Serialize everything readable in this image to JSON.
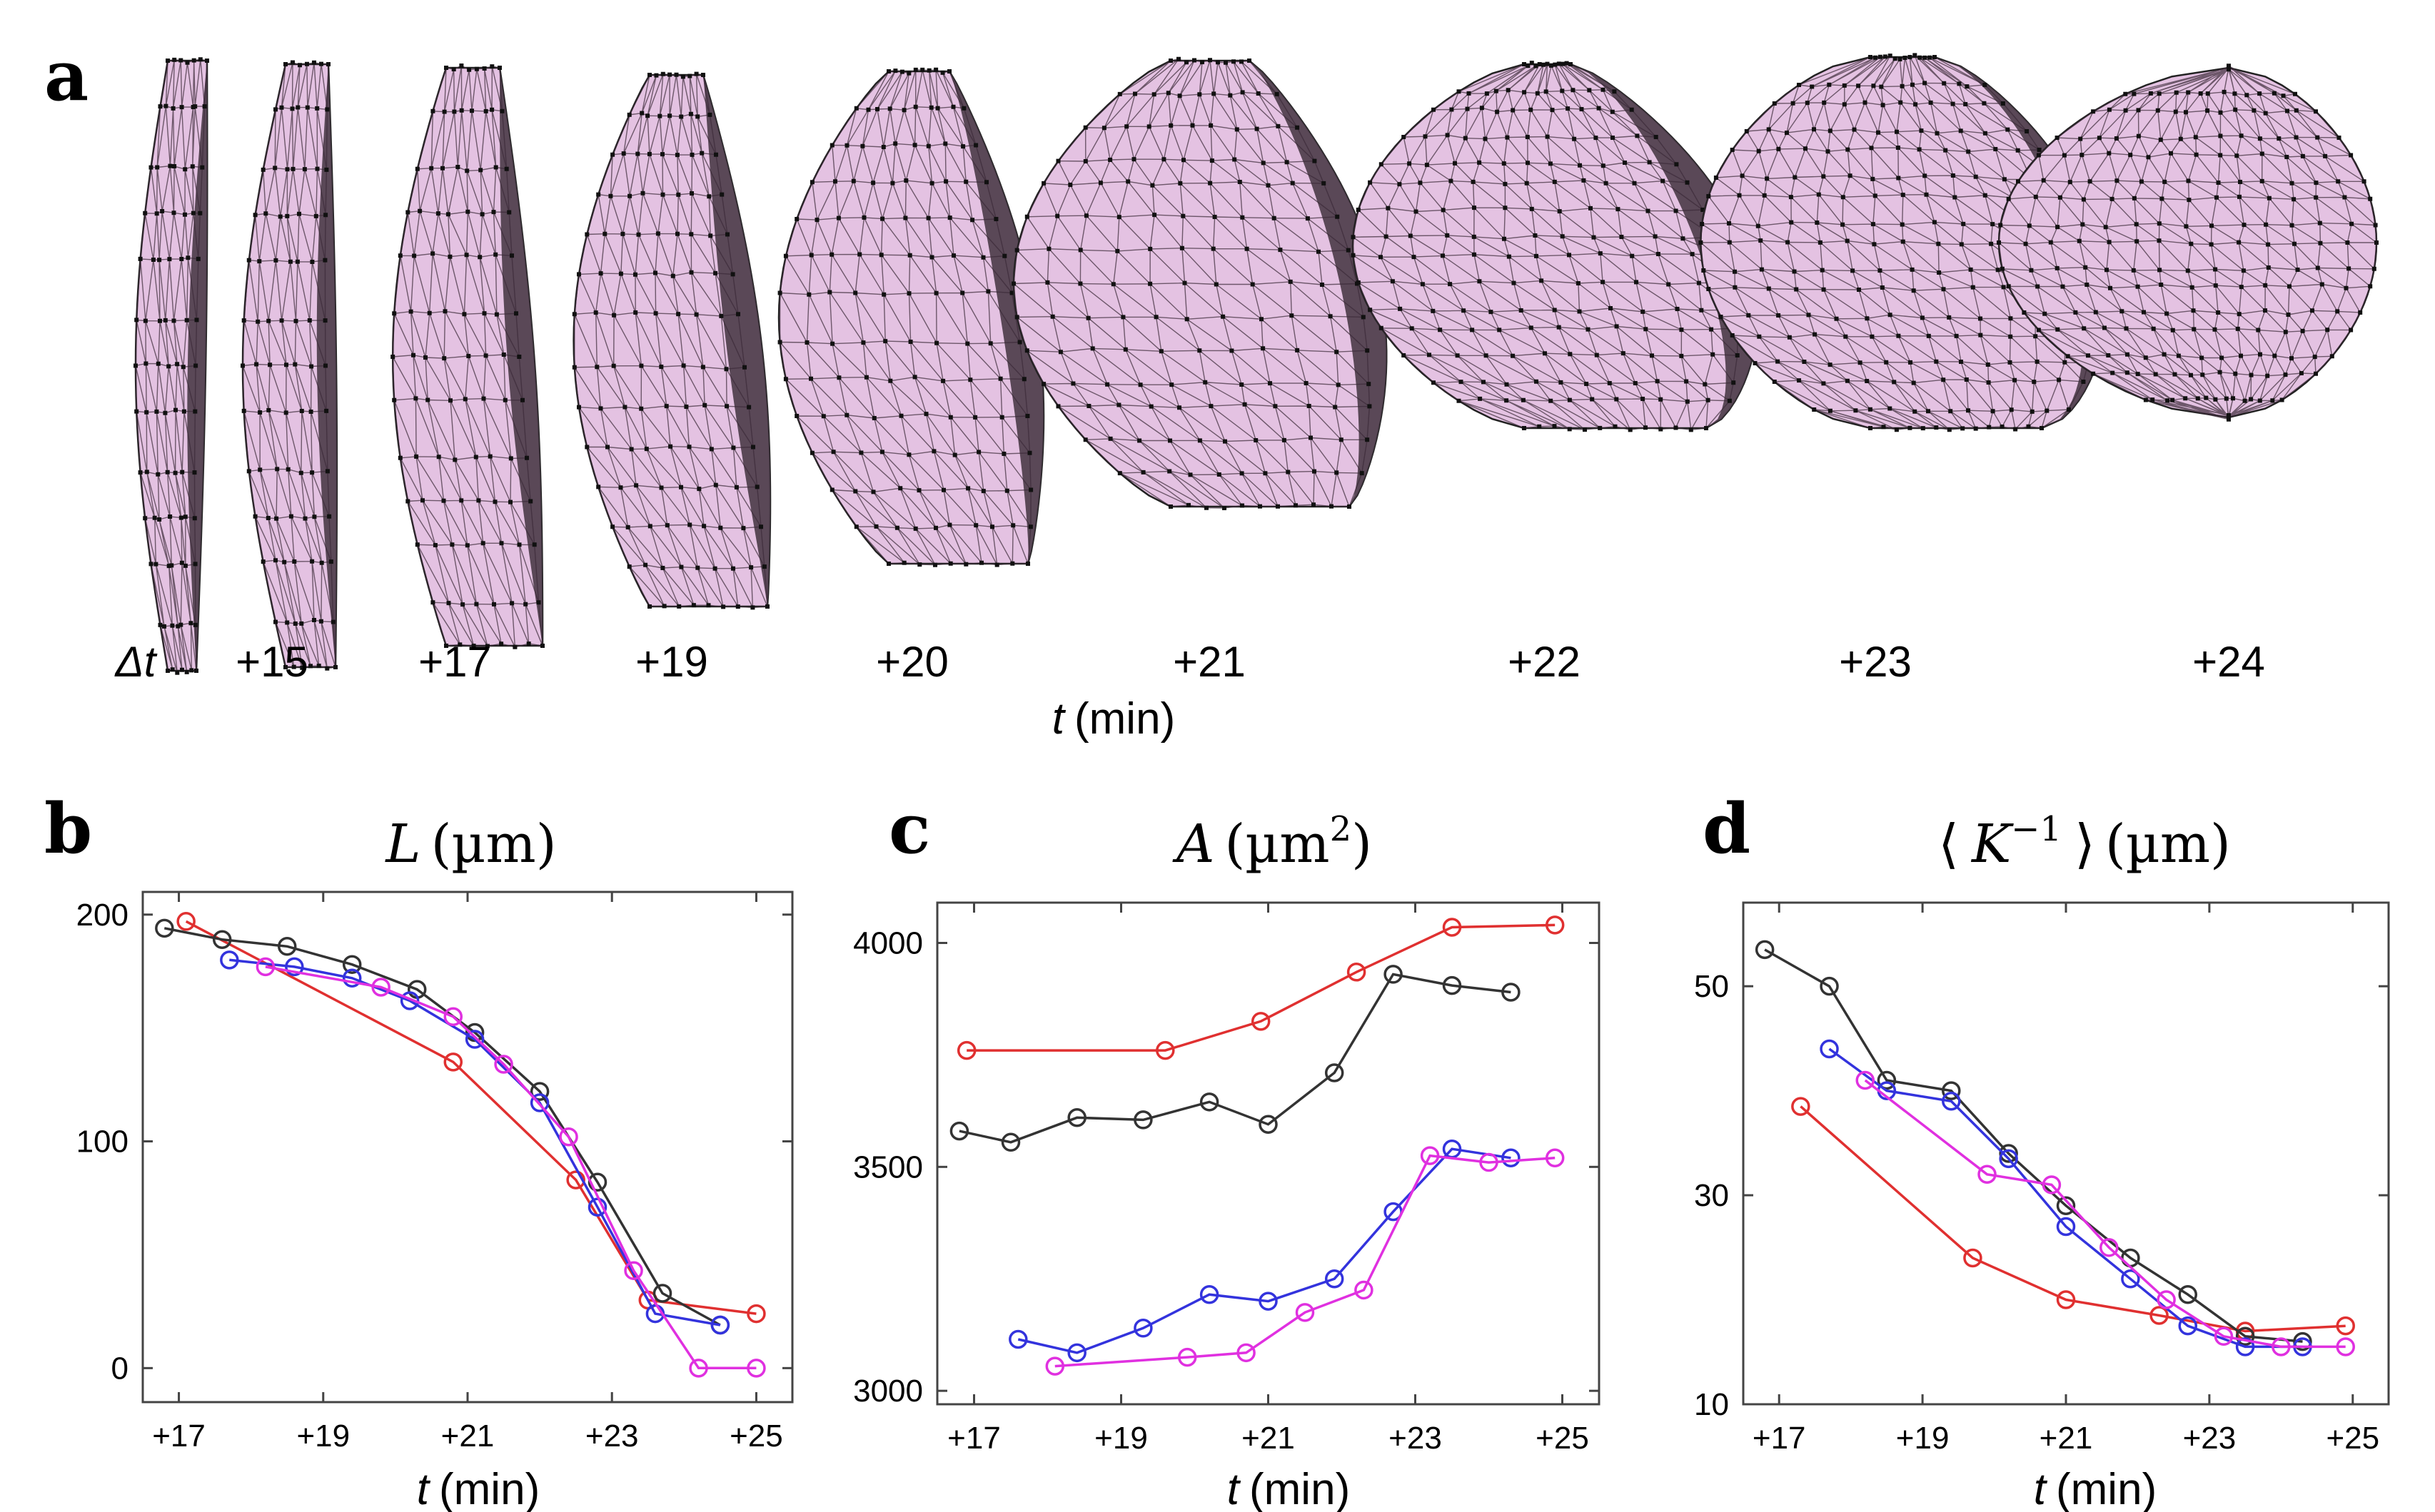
{
  "panel_a": {
    "letter": "a",
    "delta_t": "Δt",
    "time_labels": [
      "+15",
      "+17",
      "+19",
      "+20",
      "+21",
      "+22",
      "+23",
      "+24"
    ],
    "xlabel_var": "t",
    "xlabel_unit": "(min)",
    "colors": {
      "face": "#e4c2e2",
      "shadow": "#4a3b48",
      "edge": "#222222"
    }
  },
  "chart_data": [
    {
      "id": "b",
      "letter": "b",
      "type": "line",
      "title_var": "L",
      "title_unit": "(µm)",
      "xlabel_var": "t",
      "xlabel_unit": "(min)",
      "xlim": [
        16.5,
        25.5
      ],
      "ylim": [
        -15,
        210
      ],
      "xticks": [
        17,
        19,
        21,
        23,
        25
      ],
      "xtick_labels": [
        "+17",
        "+19",
        "+21",
        "+23",
        "+25"
      ],
      "yticks": [
        0,
        100,
        200
      ],
      "ytick_labels": [
        "0",
        "100",
        "200"
      ],
      "grid": false,
      "series": [
        {
          "color": "#e03030",
          "x": [
            17.1,
            20.8,
            22.5,
            23.5,
            25.0
          ],
          "y": [
            197,
            135,
            83,
            30,
            24
          ]
        },
        {
          "color": "#333333",
          "x": [
            16.8,
            17.6,
            18.5,
            19.4,
            20.3,
            21.1,
            22.0,
            22.8,
            23.7,
            24.5
          ],
          "y": [
            194,
            189,
            186,
            178,
            167,
            148,
            122,
            82,
            33,
            19
          ]
        },
        {
          "color": "#3333dd",
          "x": [
            17.7,
            18.6,
            19.4,
            20.2,
            21.1,
            22.0,
            22.8,
            23.6,
            24.5
          ],
          "y": [
            180,
            177,
            172,
            162,
            145,
            117,
            71,
            24,
            19
          ]
        },
        {
          "color": "#e030e0",
          "x": [
            18.2,
            19.8,
            20.8,
            21.5,
            22.4,
            23.3,
            24.2,
            25.0
          ],
          "y": [
            177,
            168,
            155,
            134,
            102,
            43,
            0,
            0
          ]
        }
      ]
    },
    {
      "id": "c",
      "letter": "c",
      "type": "line",
      "title_var": "A",
      "title_unit": "(µm",
      "title_sup": "2",
      "title_close": ")",
      "xlabel_var": "t",
      "xlabel_unit": "(min)",
      "xlim": [
        16.5,
        25.5
      ],
      "ylim": [
        2970,
        4090
      ],
      "xticks": [
        17,
        19,
        21,
        23,
        25
      ],
      "xtick_labels": [
        "+17",
        "+19",
        "+21",
        "+23",
        "+25"
      ],
      "yticks": [
        3000,
        3500,
        4000
      ],
      "ytick_labels": [
        "3000",
        "3500",
        "4000"
      ],
      "grid": false,
      "series": [
        {
          "color": "#e03030",
          "x": [
            16.9,
            19.6,
            20.9,
            22.2,
            23.5,
            24.9
          ],
          "y": [
            3760,
            3760,
            3825,
            3935,
            4035,
            4040
          ]
        },
        {
          "color": "#333333",
          "x": [
            16.8,
            17.5,
            18.4,
            19.3,
            20.2,
            21.0,
            21.9,
            22.7,
            23.5,
            24.3
          ],
          "y": [
            3580,
            3555,
            3610,
            3605,
            3645,
            3595,
            3710,
            3930,
            3905,
            3890
          ]
        },
        {
          "color": "#3333dd",
          "x": [
            17.6,
            18.4,
            19.3,
            20.2,
            21.0,
            21.9,
            22.7,
            23.5,
            24.3
          ],
          "y": [
            3115,
            3085,
            3140,
            3215,
            3200,
            3250,
            3400,
            3540,
            3520
          ]
        },
        {
          "color": "#e030e0",
          "x": [
            18.1,
            19.9,
            20.7,
            21.5,
            22.3,
            23.2,
            24.0,
            24.9
          ],
          "y": [
            3055,
            3075,
            3085,
            3175,
            3225,
            3525,
            3510,
            3520
          ]
        }
      ]
    },
    {
      "id": "d",
      "letter": "d",
      "type": "line",
      "title_left": "⟨",
      "title_var": "K",
      "title_sup": "−1",
      "title_right": "⟩",
      "title_unit": "(µm)",
      "xlabel_var": "t",
      "xlabel_unit": "(min)",
      "xlim": [
        16.5,
        25.5
      ],
      "ylim": [
        10,
        58
      ],
      "xticks": [
        17,
        19,
        21,
        23,
        25
      ],
      "xtick_labels": [
        "+17",
        "+19",
        "+21",
        "+23",
        "+25"
      ],
      "yticks": [
        10,
        30,
        50
      ],
      "ytick_labels": [
        "10",
        "30",
        "50"
      ],
      "grid": false,
      "series": [
        {
          "color": "#e03030",
          "x": [
            17.3,
            19.7,
            21.0,
            22.3,
            23.5,
            24.9
          ],
          "y": [
            38.5,
            24,
            20,
            18.5,
            17,
            17.5
          ]
        },
        {
          "color": "#333333",
          "x": [
            16.8,
            17.7,
            18.5,
            19.4,
            20.2,
            21.0,
            21.9,
            22.7,
            23.5,
            24.3
          ],
          "y": [
            53.5,
            50,
            41,
            40,
            34,
            29,
            24,
            20.5,
            16.5,
            16
          ]
        },
        {
          "color": "#3333dd",
          "x": [
            17.7,
            18.5,
            19.4,
            20.2,
            21.0,
            21.9,
            22.7,
            23.5,
            24.3
          ],
          "y": [
            44,
            40,
            39,
            33.5,
            27,
            22,
            17.5,
            15.5,
            15.5
          ]
        },
        {
          "color": "#e030e0",
          "x": [
            18.2,
            19.9,
            20.8,
            21.6,
            22.4,
            23.2,
            24.0,
            24.9
          ],
          "y": [
            41,
            32,
            31,
            25,
            20,
            16.5,
            15.5,
            15.5
          ]
        }
      ]
    }
  ]
}
